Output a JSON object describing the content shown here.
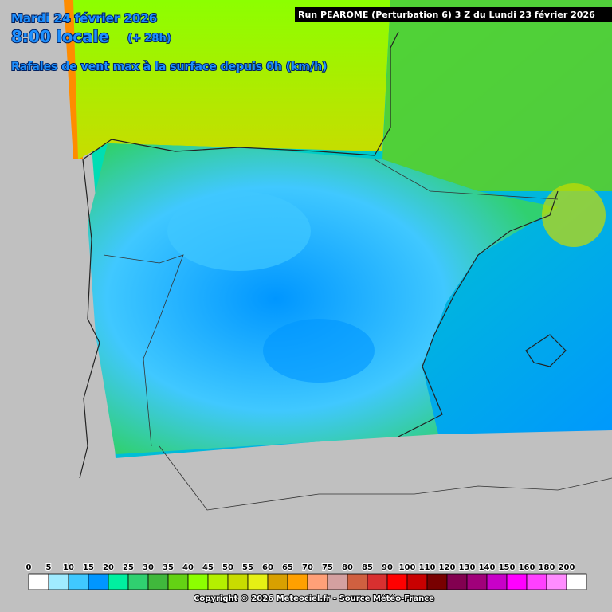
{
  "header": {
    "date": "Mardi 24 février 2026",
    "time": "8:00 locale",
    "lead": "(+ 28h)",
    "parameter": "Rafales de vent max à la surface depuis 0h (km/h)",
    "run": "Run PEAROME (Perturbation 6) 3 Z du Lundi 23 février 2026"
  },
  "legend": {
    "labels": [
      0,
      5,
      10,
      15,
      20,
      25,
      30,
      35,
      40,
      45,
      50,
      55,
      60,
      65,
      70,
      75,
      80,
      85,
      90,
      100,
      110,
      120,
      130,
      140,
      150,
      160,
      180,
      200
    ],
    "colors": [
      "#ffffff",
      "#a0ebff",
      "#40c8ff",
      "#0096ff",
      "#00f0a0",
      "#30d070",
      "#40b83c",
      "#64d214",
      "#8cff00",
      "#b4f000",
      "#c8dc00",
      "#e6f014",
      "#d8a000",
      "#ffa000",
      "#ffa078",
      "#d4a0a0",
      "#d06040",
      "#d83030",
      "#ff0000",
      "#c80000",
      "#780000",
      "#820050",
      "#a0007a",
      "#c800c8",
      "#ff00ff",
      "#ff40ff",
      "#ff8cff",
      "#ffffff"
    ]
  },
  "footer": {
    "copyright": "Copyright © 2026 Meteociel.fr - Source Météo-France"
  }
}
